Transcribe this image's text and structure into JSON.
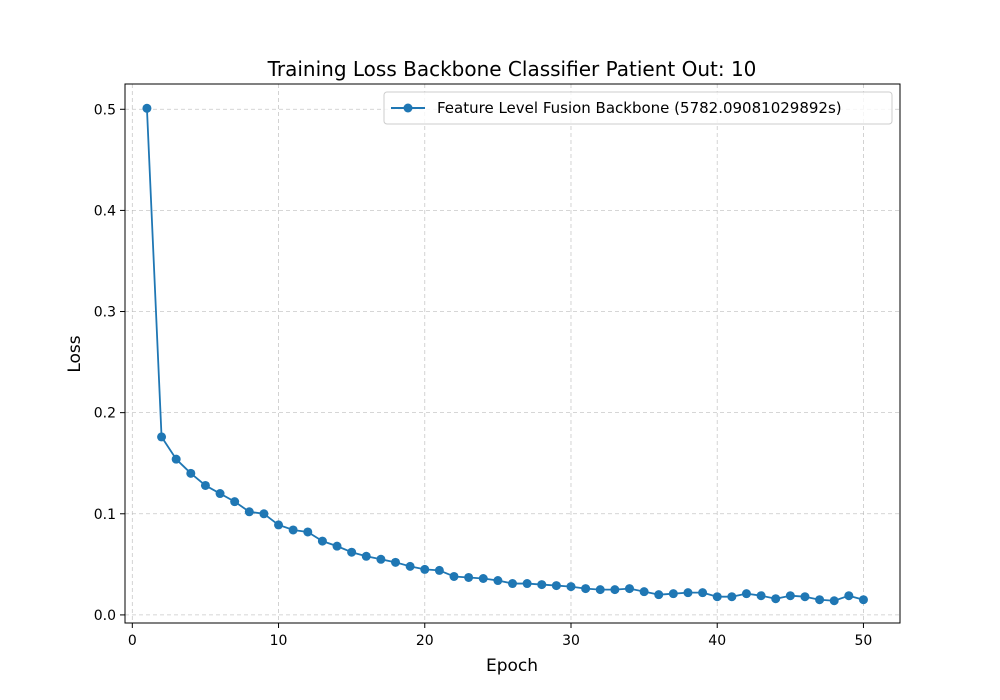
{
  "chart_data": {
    "type": "line",
    "title": "Training Loss Backbone Classifier Patient Out: 10",
    "xlabel": "Epoch",
    "ylabel": "Loss",
    "xlim": [
      -0.5,
      52.5
    ],
    "ylim": [
      -0.008,
      0.525
    ],
    "xticks": [
      0,
      10,
      20,
      30,
      40,
      50
    ],
    "yticks": [
      0.0,
      0.1,
      0.2,
      0.3,
      0.4,
      0.5
    ],
    "grid": true,
    "legend_position": "top-right",
    "series": [
      {
        "name": "Feature Level Fusion Backbone (5782.09081029892s)",
        "color": "#1f77b4",
        "marker": "circle",
        "x": [
          1,
          2,
          3,
          4,
          5,
          6,
          7,
          8,
          9,
          10,
          11,
          12,
          13,
          14,
          15,
          16,
          17,
          18,
          19,
          20,
          21,
          22,
          23,
          24,
          25,
          26,
          27,
          28,
          29,
          30,
          31,
          32,
          33,
          34,
          35,
          36,
          37,
          38,
          39,
          40,
          41,
          42,
          43,
          44,
          45,
          46,
          47,
          48,
          49,
          50
        ],
        "y": [
          0.501,
          0.176,
          0.154,
          0.14,
          0.128,
          0.12,
          0.112,
          0.102,
          0.1,
          0.089,
          0.084,
          0.082,
          0.073,
          0.068,
          0.062,
          0.058,
          0.055,
          0.052,
          0.048,
          0.045,
          0.044,
          0.038,
          0.037,
          0.036,
          0.034,
          0.031,
          0.031,
          0.03,
          0.029,
          0.028,
          0.026,
          0.025,
          0.025,
          0.026,
          0.023,
          0.02,
          0.021,
          0.022,
          0.022,
          0.018,
          0.018,
          0.021,
          0.019,
          0.016,
          0.019,
          0.018,
          0.015,
          0.014,
          0.019,
          0.015
        ]
      }
    ]
  }
}
